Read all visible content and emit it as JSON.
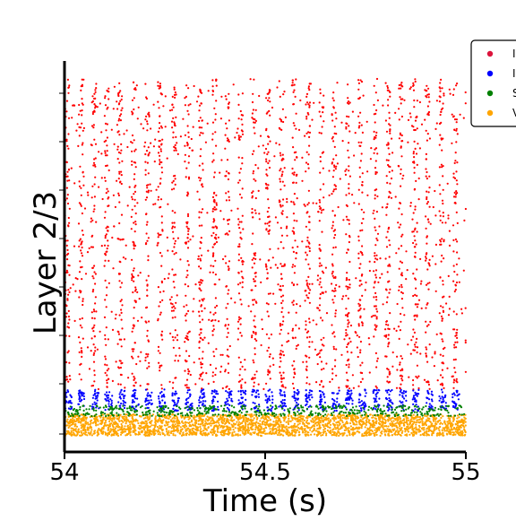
{
  "chart_data": {
    "type": "scatter",
    "title": "",
    "xlabel": "Time (s)",
    "ylabel": "Layer 2/3",
    "xlim": [
      54,
      55
    ],
    "x_ticks": [
      54,
      54.5,
      55
    ],
    "x_tick_labels": [
      "54",
      "54.5",
      "55"
    ],
    "grid": false,
    "legend_position": "top-right (partially clipped)",
    "legend_entries_visible": [
      "I",
      "I",
      "S",
      "V"
    ],
    "series": [
      {
        "name": "I",
        "color": "#ff0000",
        "neuron_band": [
          0.13,
          1.0
        ],
        "rate_pattern": "oscillatory bursts about every 0.033 s"
      },
      {
        "name": "I",
        "color": "#0000ff",
        "neuron_band": [
          0.07,
          0.13
        ],
        "rate_pattern": "oscillatory bursts"
      },
      {
        "name": "S",
        "color": "#008000",
        "neuron_band": [
          0.055,
          0.085
        ],
        "rate_pattern": "sparse tonic"
      },
      {
        "name": "V",
        "color": "#ffa500",
        "neuron_band": [
          0.0,
          0.06
        ],
        "rate_pattern": "dense tonic"
      }
    ]
  }
}
